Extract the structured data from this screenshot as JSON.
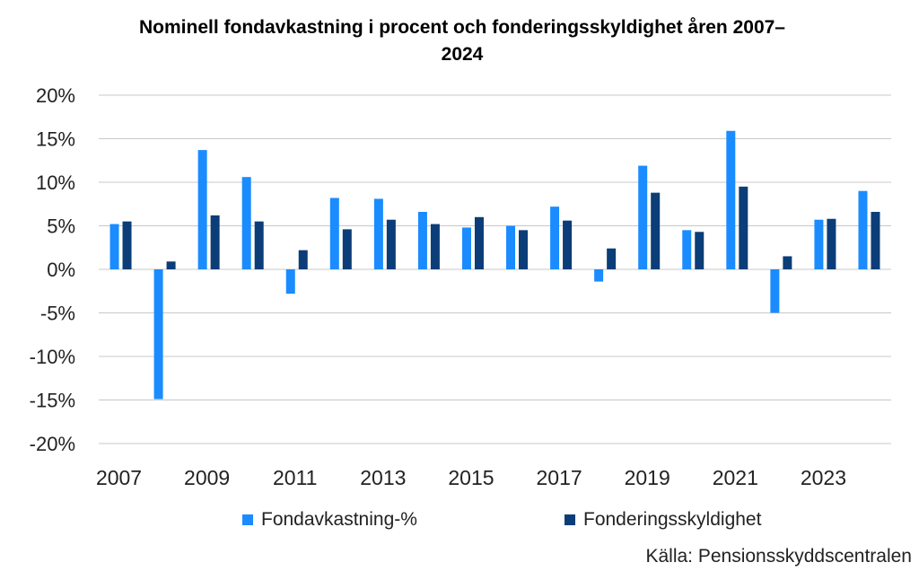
{
  "chart_data": {
    "type": "bar",
    "title": "Nominell fondavkastning i procent och fonderingsskyldighet åren 2007–\n2024",
    "x": [
      2007,
      2008,
      2009,
      2010,
      2011,
      2012,
      2013,
      2014,
      2015,
      2016,
      2017,
      2018,
      2019,
      2020,
      2021,
      2022,
      2023,
      2024
    ],
    "x_tick_labels": [
      "2007",
      "2009",
      "2011",
      "2013",
      "2015",
      "2017",
      "2019",
      "2021",
      "2023"
    ],
    "y_tick_labels": [
      "20%",
      "15%",
      "10%",
      "5%",
      "0%",
      "-5%",
      "-10%",
      "-15%",
      "-20%"
    ],
    "ylim": [
      -20,
      20
    ],
    "y_unit": "%",
    "grid": true,
    "legend_position": "bottom",
    "series": [
      {
        "name": "Fondavkastning-%",
        "color": "#1a8cff",
        "values": [
          5.2,
          -14.9,
          13.7,
          10.6,
          -2.8,
          8.2,
          8.1,
          6.6,
          4.8,
          5.0,
          7.2,
          -1.4,
          11.9,
          4.5,
          15.9,
          -5.0,
          5.7,
          9.0
        ]
      },
      {
        "name": "Fonderingsskyldighet",
        "color": "#0b3d78",
        "values": [
          5.5,
          0.9,
          6.2,
          5.5,
          2.2,
          4.6,
          5.7,
          5.2,
          6.0,
          4.5,
          5.6,
          2.4,
          8.8,
          4.3,
          9.5,
          1.5,
          5.8,
          6.6
        ]
      }
    ],
    "source": "Källa: Pensionsskyddscentralen"
  }
}
